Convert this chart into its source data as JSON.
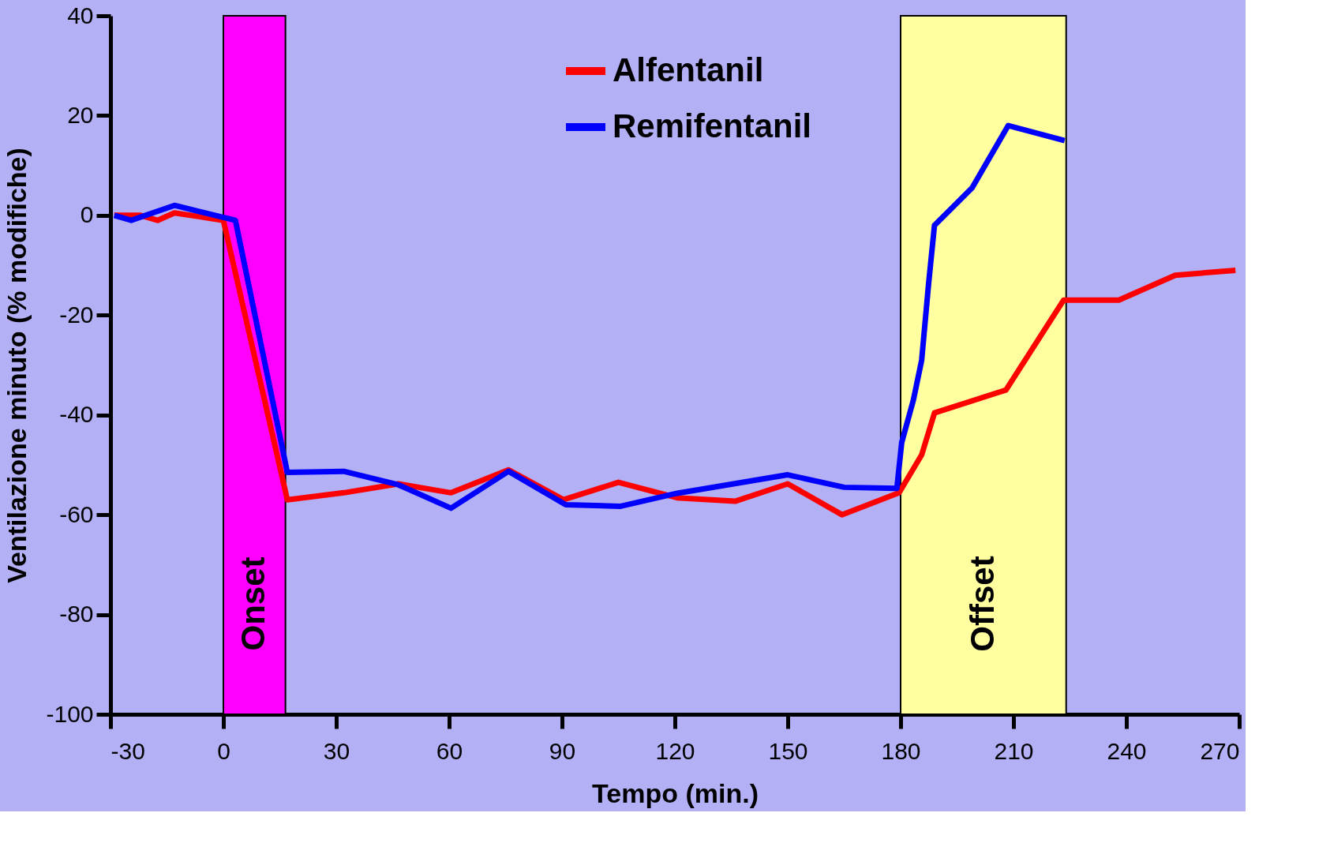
{
  "chart_data": {
    "type": "line",
    "xlabel": "Tempo (min.)",
    "ylabel": "Ventilazione minuto (% modifiche)",
    "xlim": [
      -30,
      270
    ],
    "xticks": [
      -30,
      0,
      30,
      60,
      90,
      120,
      150,
      180,
      210,
      240,
      270
    ],
    "ylim": [
      -100,
      40
    ],
    "yticks": [
      -100,
      -80,
      -60,
      -40,
      -20,
      0,
      20,
      40
    ],
    "grid": false,
    "legend": "top",
    "marker": "none",
    "line_style": "solid",
    "bands": [
      {
        "axis": "x",
        "from": 0,
        "to": 16.5,
        "label": "Onset",
        "color": "#ff00ff"
      },
      {
        "axis": "x",
        "from": 180,
        "to": 224,
        "label": "Offset",
        "color": "#ffffa0"
      }
    ],
    "series": [
      {
        "name": "Alfentanil",
        "color": "#ff0000",
        "x": [
          -29,
          -22,
          -17.5,
          -13,
          0,
          17,
          32,
          46.5,
          60.5,
          75.8,
          90.4,
          105,
          120.6,
          136,
          150,
          164.4,
          179.6,
          185.6,
          189,
          208,
          223.3,
          238,
          253,
          269
        ],
        "values": [
          0,
          0,
          -1,
          0.5,
          -1,
          -57,
          -55.6,
          -53.8,
          -55.6,
          -51,
          -57,
          -53.5,
          -56.6,
          -57.3,
          -53.8,
          -60,
          -55.6,
          -48,
          -39.6,
          -35,
          -17,
          -17,
          -12,
          -11
        ]
      },
      {
        "name": "Remifentanil",
        "color": "#0000ff",
        "x": [
          -29,
          -24.5,
          -13,
          3.2,
          17,
          32,
          46.5,
          60.5,
          75.8,
          91,
          105.6,
          120.6,
          150,
          165,
          179,
          180.3,
          183.4,
          185.6,
          187.4,
          189,
          199,
          208.6,
          223.6
        ],
        "values": [
          0,
          -1,
          2,
          -1,
          -51.5,
          -51.3,
          -54,
          -58.7,
          -51.3,
          -58,
          -58.3,
          -55.7,
          -52,
          -54.5,
          -54.7,
          -45.5,
          -37,
          -29,
          -14,
          -2,
          5.5,
          18,
          15
        ]
      }
    ]
  }
}
